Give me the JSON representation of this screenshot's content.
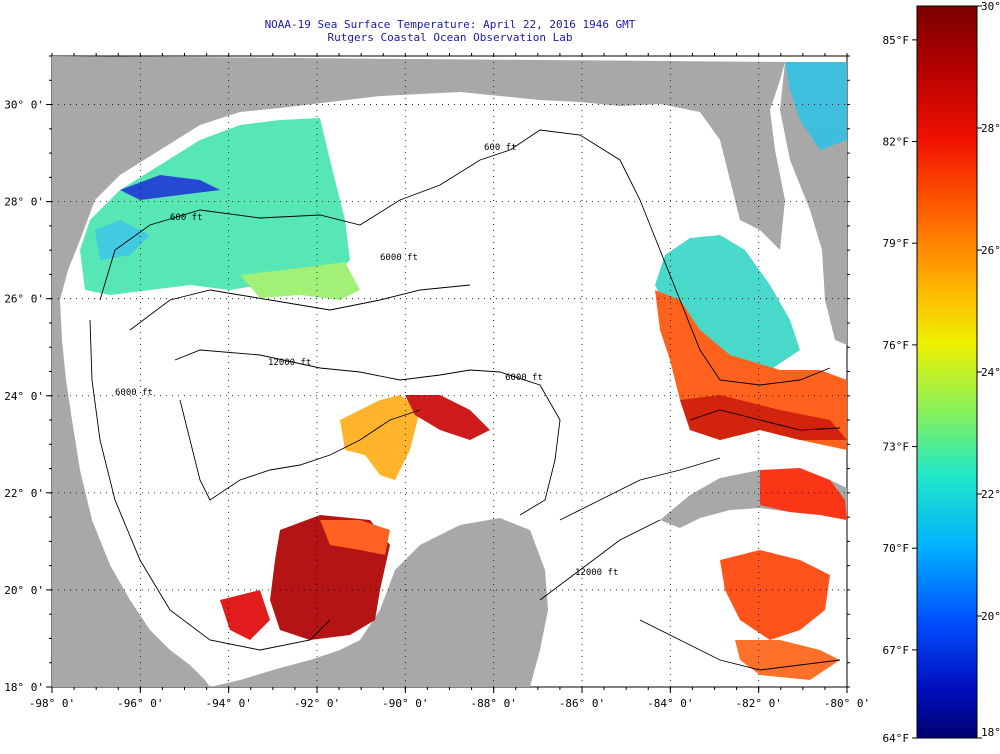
{
  "title": {
    "line1": "NOAA-19 Sea Surface Temperature:  April 22, 2016 1946 GMT",
    "line2": "Rutgers Coastal Ocean Observation Lab"
  },
  "map": {
    "lon_range": [
      -98,
      -80
    ],
    "lat_range": [
      18,
      31
    ],
    "lon_ticks": [
      "-98° 0'",
      "-96° 0'",
      "-94° 0'",
      "-92° 0'",
      "-90° 0'",
      "-88° 0'",
      "-86° 0'",
      "-84° 0'",
      "-82° 0'",
      "-80° 0'"
    ],
    "lat_ticks": [
      "30° 0'",
      "28° 0'",
      "26° 0'",
      "24° 0'",
      "22° 0'",
      "20° 0'",
      "18° 0'"
    ],
    "contour_labels": [
      "600 ft",
      "600 ft",
      "6000 ft",
      "12000 ft",
      "6000 ft",
      "6000 ft",
      "12000 ft"
    ],
    "colors": {
      "land": "#a8a8a8",
      "ocean_no_data": "#ffffff",
      "contour": "#000000",
      "grid": "#000000"
    }
  },
  "colorbar": {
    "celsius_ticks": [
      "30°C",
      "28°C",
      "26°C",
      "24°C",
      "22°C",
      "20°C",
      "18°C"
    ],
    "fahrenheit_ticks": [
      "85°F",
      "82°F",
      "79°F",
      "76°F",
      "73°F",
      "70°F",
      "67°F",
      "64°F"
    ],
    "range_c": [
      18,
      30
    ],
    "gradient_colors": [
      "#7a0000",
      "#d40000",
      "#ff3000",
      "#ff8a00",
      "#ffe000",
      "#b8f040",
      "#30f0c0",
      "#00c8ff",
      "#0060ff",
      "#0010c8",
      "#000080"
    ]
  }
}
